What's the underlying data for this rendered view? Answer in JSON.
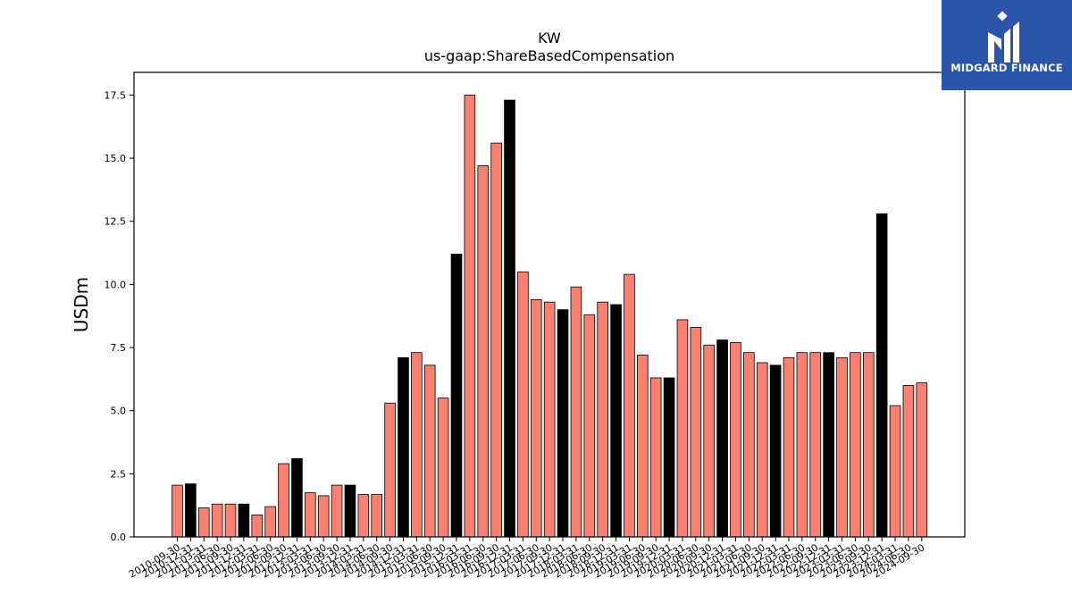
{
  "logo": {
    "text": "MIDGARD FINANCE",
    "bg_color": "#2a55a8"
  },
  "chart_data": {
    "type": "bar",
    "title": "KW",
    "subtitle": "us-gaap:ShareBasedCompensation",
    "xlabel": "",
    "ylabel": "USDm",
    "ylim": [
      0,
      18.4
    ],
    "yticks": [
      "0.0",
      "2.5",
      "5.0",
      "7.5",
      "10.0",
      "12.5",
      "15.0",
      "17.5"
    ],
    "colors": {
      "quarter": "#fa8072",
      "year_end": "#000000"
    },
    "categories": [
      "2010-09-30",
      "2010-12-31",
      "2011-03-31",
      "2011-06-30",
      "2011-09-30",
      "2011-12-31",
      "2012-03-31",
      "2012-06-30",
      "2012-09-30",
      "2012-12-31",
      "2013-03-31",
      "2013-06-30",
      "2013-09-30",
      "2013-12-31",
      "2014-03-31",
      "2014-06-30",
      "2014-09-30",
      "2014-12-31",
      "2015-03-31",
      "2015-06-30",
      "2015-09-30",
      "2015-12-31",
      "2016-03-31",
      "2016-06-30",
      "2016-09-30",
      "2016-12-31",
      "2017-03-31",
      "2017-06-30",
      "2017-09-30",
      "2017-12-31",
      "2018-03-31",
      "2018-06-30",
      "2018-09-30",
      "2018-12-31",
      "2019-03-31",
      "2019-06-30",
      "2019-09-30",
      "2019-12-31",
      "2020-03-31",
      "2020-06-30",
      "2020-09-30",
      "2020-12-31",
      "2021-03-31",
      "2021-06-30",
      "2021-09-30",
      "2021-12-31",
      "2022-03-31",
      "2022-06-30",
      "2022-09-30",
      "2022-12-31",
      "2023-03-31",
      "2023-06-30",
      "2023-09-30",
      "2023-12-31",
      "2024-03-31",
      "2024-06-30",
      "2024-09-30"
    ],
    "values": [
      2.05,
      2.1,
      1.15,
      1.3,
      1.3,
      1.3,
      0.87,
      1.2,
      2.9,
      3.1,
      1.75,
      1.63,
      2.05,
      2.05,
      1.68,
      1.68,
      5.3,
      7.1,
      7.3,
      6.8,
      5.5,
      11.2,
      17.5,
      14.7,
      15.6,
      17.3,
      10.5,
      9.4,
      9.3,
      9.0,
      9.9,
      8.8,
      9.3,
      9.2,
      10.4,
      7.2,
      6.3,
      6.3,
      8.6,
      8.3,
      7.6,
      7.8,
      7.7,
      7.3,
      6.9,
      6.8,
      7.1,
      7.3,
      7.3,
      7.3,
      7.1,
      7.3,
      7.3,
      12.8,
      5.2,
      6.0,
      6.1
    ],
    "year_end": [
      false,
      true,
      false,
      false,
      false,
      true,
      false,
      false,
      false,
      true,
      false,
      false,
      false,
      true,
      false,
      false,
      false,
      true,
      false,
      false,
      false,
      true,
      false,
      false,
      false,
      true,
      false,
      false,
      false,
      true,
      false,
      false,
      false,
      true,
      false,
      false,
      false,
      true,
      false,
      false,
      false,
      true,
      false,
      false,
      false,
      true,
      false,
      false,
      false,
      true,
      false,
      false,
      false,
      true,
      false,
      false,
      false
    ]
  }
}
